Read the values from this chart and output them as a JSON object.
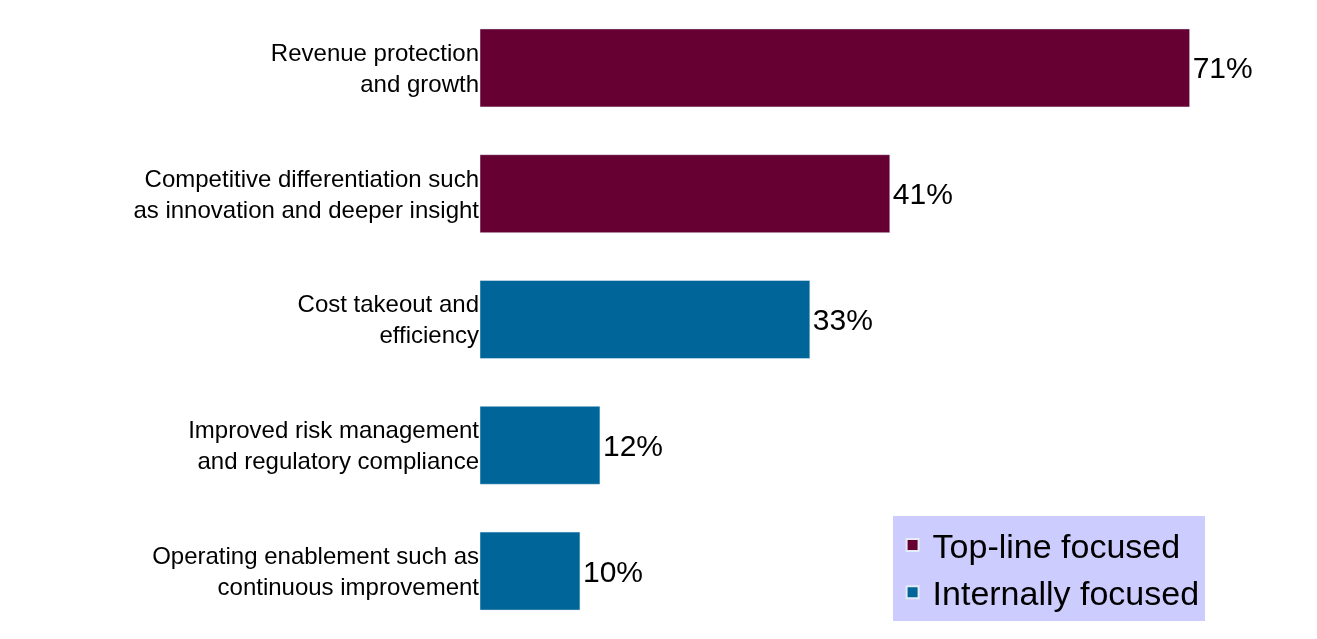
{
  "chart_data": {
    "type": "bar",
    "orientation": "horizontal",
    "categories": [
      "Revenue protection\nand growth",
      "Competitive differentiation such\nas innovation and deeper insight",
      "Cost takeout and\nefficiency",
      "Improved risk management\nand regulatory compliance",
      "Operating enablement such as\ncontinuous improvement"
    ],
    "series": [
      {
        "name": "Top-line focused",
        "color": "#660033",
        "values": [
          71,
          41,
          null,
          null,
          null
        ],
        "value_labels": [
          "71%",
          "41%",
          null,
          null,
          null
        ]
      },
      {
        "name": "Internally focused",
        "color": "#006699",
        "values": [
          null,
          null,
          33,
          12,
          10
        ],
        "value_labels": [
          null,
          null,
          "33%",
          "12%",
          "10%"
        ]
      }
    ],
    "legend": "bottom right",
    "tick_labels": "y"
  }
}
